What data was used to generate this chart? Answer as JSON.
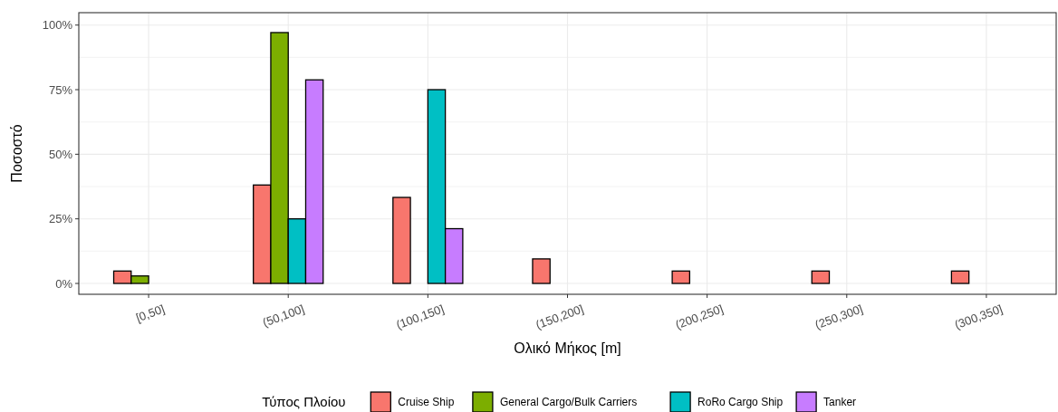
{
  "chart_data": {
    "type": "bar",
    "categories": [
      "[0,50]",
      "(50,100]",
      "(100,150]",
      "(150,200]",
      "(200,250]",
      "(250,300]",
      "(300,350]"
    ],
    "series": [
      {
        "name": "Cruise Ship",
        "color": "#f8766d",
        "values": [
          4.8,
          38.1,
          33.3,
          9.5,
          4.8,
          4.8,
          4.8
        ]
      },
      {
        "name": "General Cargo/Bulk Carriers",
        "color": "#7cae00",
        "values": [
          2.9,
          97.1,
          0,
          0,
          0,
          0,
          0
        ]
      },
      {
        "name": "RoRo Cargo Ship",
        "color": "#00bfc4",
        "values": [
          0,
          25,
          75,
          0,
          0,
          0,
          0
        ]
      },
      {
        "name": "Tanker",
        "color": "#c77cff",
        "values": [
          0,
          78.8,
          21.2,
          0,
          0,
          0,
          0
        ]
      }
    ],
    "xlabel": "Ολικό Μήκος [m]",
    "ylabel": "Ποσοστό",
    "legend_title": "Τύπος Πλοίου",
    "ylim": [
      -4.2,
      104.8
    ],
    "yticks": [
      {
        "value": 0,
        "label": "0%"
      },
      {
        "value": 12.5,
        "label": null
      },
      {
        "value": 25,
        "label": "25%"
      },
      {
        "value": 37.5,
        "label": null
      },
      {
        "value": 50,
        "label": "50%"
      },
      {
        "value": 62.5,
        "label": null
      },
      {
        "value": 75,
        "label": "75%"
      },
      {
        "value": 87.5,
        "label": null
      },
      {
        "value": 100,
        "label": "100%"
      }
    ],
    "grid": true,
    "legend": "bottom"
  }
}
